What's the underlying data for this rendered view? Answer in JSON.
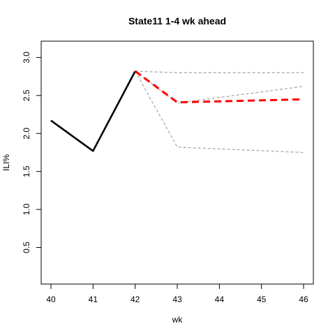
{
  "chart_data": {
    "type": "line",
    "title": "State11 1-4 wk ahead",
    "xlabel": "wk",
    "ylabel": "ILI%",
    "xlim": [
      40,
      46
    ],
    "ylim": [
      0.05,
      3.1
    ],
    "x_ticks": [
      40,
      41,
      42,
      43,
      44,
      45,
      46
    ],
    "y_ticks": [
      0.5,
      1.0,
      1.5,
      2.0,
      2.5,
      3.0
    ],
    "y_tick_labels": [
      "0.5",
      "1.0",
      "1.5",
      "2.0",
      "2.5",
      "3.0"
    ],
    "grid": false,
    "series": [
      {
        "role": "observed",
        "color": "#000000",
        "style": "solid",
        "x": [
          40,
          41,
          42
        ],
        "y": [
          2.17,
          1.77,
          2.82
        ]
      },
      {
        "role": "forecast-upper",
        "color": "#a9a9a9",
        "style": "dashed",
        "x": [
          42,
          43,
          46
        ],
        "y": [
          2.82,
          2.8,
          2.8
        ]
      },
      {
        "role": "forecast-mid",
        "color": "#a9a9a9",
        "style": "dashed",
        "x": [
          42,
          43,
          46
        ],
        "y": [
          2.82,
          2.4,
          2.62
        ]
      },
      {
        "role": "forecast-lower",
        "color": "#a9a9a9",
        "style": "dashed",
        "x": [
          42,
          43,
          46
        ],
        "y": [
          2.82,
          1.82,
          1.75
        ]
      },
      {
        "role": "forecast-mean",
        "color": "#ff0000",
        "style": "dashed",
        "x": [
          42,
          43,
          46
        ],
        "y": [
          2.82,
          2.41,
          2.45
        ]
      }
    ]
  }
}
